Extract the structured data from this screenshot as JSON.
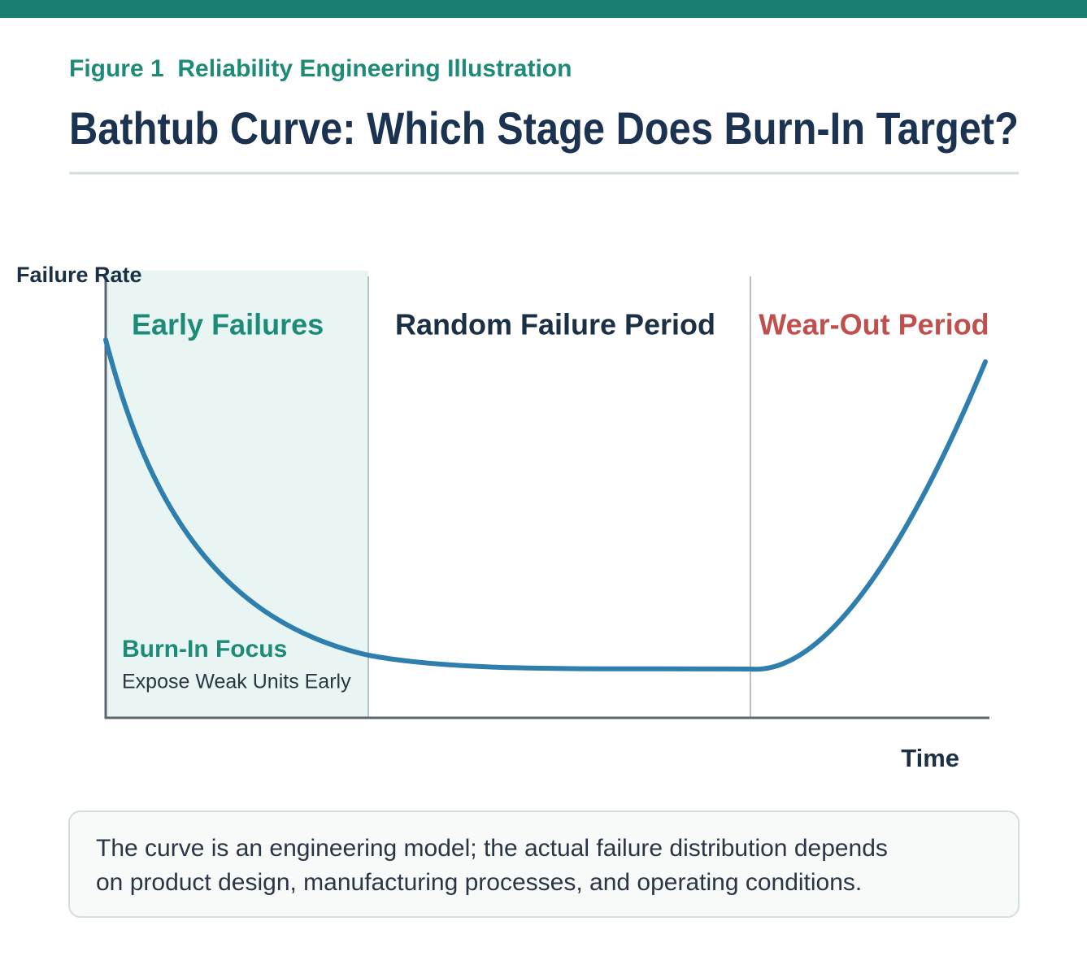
{
  "header": {
    "figure_label": "Figure 1  Reliability Engineering Illustration",
    "title": "Bathtub Curve: Which Stage Does Burn-In Target?"
  },
  "diagram": {
    "y_axis_label": "Failure Rate",
    "x_axis_label": "Time",
    "stages": [
      {
        "label": "Early Failures"
      },
      {
        "label": "Random Failure Period"
      },
      {
        "label": "Wear-Out Period"
      }
    ],
    "annotation": {
      "title": "Burn-In Focus",
      "subtitle": "Expose Weak Units Early"
    }
  },
  "note": {
    "lines": [
      "The curve is an engineering model; the actual failure distribution depends",
      "on product design, manufacturing processes, and operating conditions."
    ]
  }
}
